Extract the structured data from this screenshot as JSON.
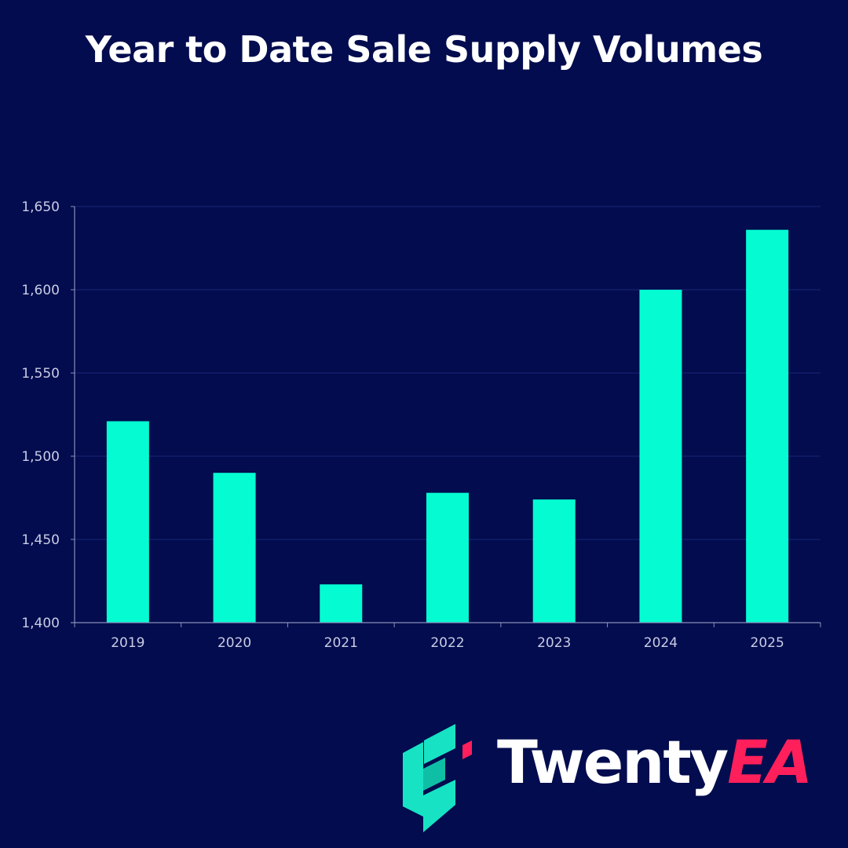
{
  "title": "Year to Date Sale Supply Volumes",
  "colors": {
    "background": "#020c4e",
    "bar": "#05fcd2",
    "grid": "#1a2678",
    "axis": "#8a90b8",
    "logo_teal": "#17e3c4",
    "logo_pink": "#ff1f5b"
  },
  "chart_data": {
    "type": "bar",
    "title": "Year to Date Sale Supply Volumes",
    "xlabel": "",
    "ylabel": "",
    "categories": [
      "2019",
      "2020",
      "2021",
      "2022",
      "2023",
      "2024",
      "2025"
    ],
    "values": [
      1521,
      1490,
      1423,
      1478,
      1474,
      1600,
      1636
    ],
    "ylim": [
      1400,
      1650
    ],
    "yticks": [
      1400,
      1450,
      1500,
      1550,
      1600,
      1650
    ],
    "ytick_labels": [
      "1,400",
      "1,450",
      "1,500",
      "1,550",
      "1,600",
      "1,650"
    ],
    "grid": true,
    "legend": "none"
  },
  "logo": {
    "word_primary": "Twenty",
    "word_accent": "EA",
    "mark_icon": "twentyea-e-icon"
  }
}
